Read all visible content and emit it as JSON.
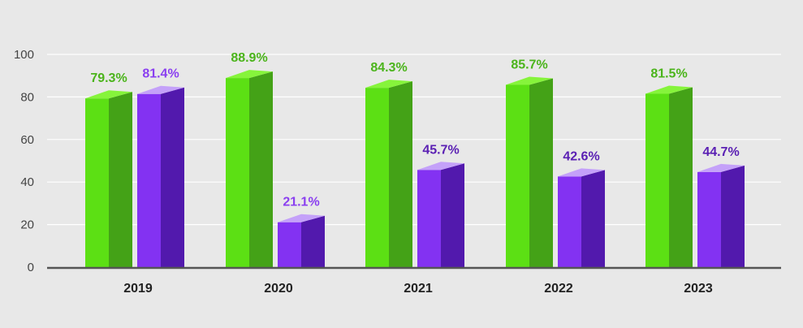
{
  "chart_data": {
    "type": "bar",
    "categories": [
      "2019",
      "2020",
      "2021",
      "2022",
      "2023"
    ],
    "series": [
      {
        "values": [
          79.3,
          88.9,
          84.3,
          85.7,
          81.5
        ],
        "labels": [
          "79.3%",
          "88.9%",
          "84.3%",
          "85.7%",
          "81.5%"
        ],
        "color": "#5ce014",
        "side_color": "#44a217",
        "top_color": "#86f43b",
        "label_color": "#4bb41b"
      },
      {
        "values": [
          81.4,
          21.1,
          45.7,
          42.6,
          44.7
        ],
        "labels": [
          "81.4%",
          "21.1%",
          "45.7%",
          "42.6%",
          "44.7%"
        ],
        "color": "#8332f2",
        "side_color": "#5219ad",
        "top_color": "#c4a1f9",
        "label_color_top": "#8a3ff0",
        "label_color": "#5a1fb3"
      }
    ],
    "yticks": [
      0,
      20,
      40,
      60,
      80,
      100
    ],
    "ylim": [
      0,
      100
    ],
    "grid": true,
    "title": "",
    "xlabel": "",
    "ylabel": ""
  }
}
